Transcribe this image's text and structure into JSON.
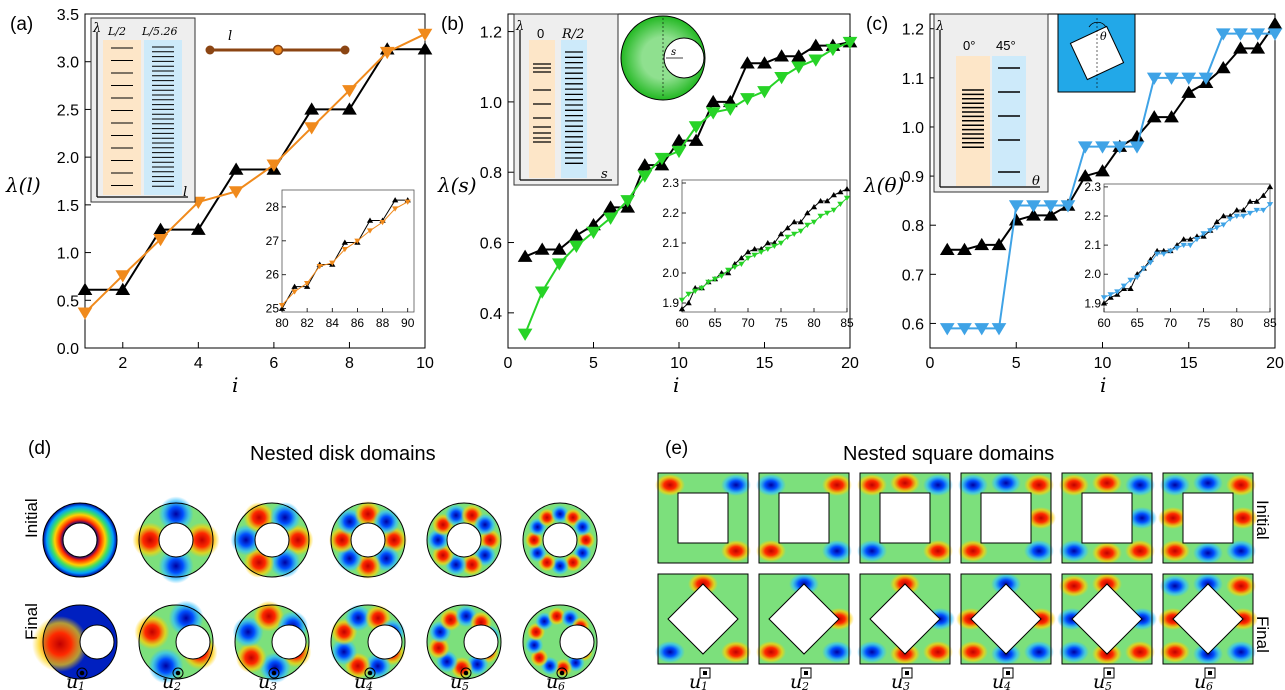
{
  "colors": {
    "black": "#000000",
    "orange": "#f08a1c",
    "green": "#27d327",
    "blue": "#3fa3e6",
    "rod": "#8b4513",
    "peach": "#fde6c8",
    "lightblue": "#cdeafa",
    "insetbg": "#eeeeee"
  },
  "panel_a": {
    "label": "(a)",
    "ylabel": "λ(l)",
    "xlabel": "i",
    "rod_label": "l",
    "xticks": [
      "2",
      "4",
      "6",
      "8",
      "10"
    ],
    "yticks": [
      "0.0",
      "0.5",
      "1.0",
      "1.5",
      "2.0",
      "2.5",
      "3.0",
      "3.5"
    ],
    "ladder": {
      "axis_y": "λ",
      "axis_x": "l",
      "col1": "L/2",
      "col2": "L/5.26"
    },
    "inset": {
      "xticks": [
        "80",
        "82",
        "84",
        "86",
        "88",
        "90"
      ],
      "yticks": [
        "25",
        "26",
        "27",
        "28"
      ]
    }
  },
  "panel_b": {
    "label": "(b)",
    "ylabel": "λ(s)",
    "xlabel": "i",
    "disk_label": "s",
    "xticks": [
      "0",
      "5",
      "10",
      "15",
      "20"
    ],
    "yticks": [
      "0.4",
      "0.6",
      "0.8",
      "1.0",
      "1.2"
    ],
    "ladder": {
      "axis_y": "λ",
      "axis_x": "s",
      "col1": "0",
      "col2": "R/2"
    },
    "inset": {
      "xticks": [
        "60",
        "65",
        "70",
        "75",
        "80",
        "85"
      ],
      "yticks": [
        "1.9",
        "2.0",
        "2.1",
        "2.2",
        "2.3"
      ]
    }
  },
  "panel_c": {
    "label": "(c)",
    "ylabel": "λ(θ)",
    "xlabel": "i",
    "square_label": "θ",
    "xticks": [
      "0",
      "5",
      "10",
      "15",
      "20"
    ],
    "yticks": [
      "0.6",
      "0.7",
      "0.8",
      "0.9",
      "1.0",
      "1.1",
      "1.2"
    ],
    "ladder": {
      "axis_y": "λ",
      "axis_x": "θ",
      "col1": "0°",
      "col2": "45°"
    },
    "inset": {
      "xticks": [
        "60",
        "65",
        "70",
        "75",
        "80",
        "85"
      ],
      "yticks": [
        "1.9",
        "2.0",
        "2.1",
        "2.2",
        "2.3"
      ]
    }
  },
  "panel_d": {
    "label": "(d)",
    "title": "Nested disk domains",
    "row_initial": "Initial",
    "row_final": "Final",
    "mode_labels": [
      "u",
      "u",
      "u",
      "u",
      "u",
      "u"
    ],
    "mode_subs": [
      "1",
      "2",
      "3",
      "4",
      "5",
      "6"
    ]
  },
  "panel_e": {
    "label": "(e)",
    "title": "Nested square domains",
    "row_initial": "Initial",
    "row_final": "Final",
    "mode_labels": [
      "u",
      "u",
      "u",
      "u",
      "u",
      "u"
    ],
    "mode_subs": [
      "1",
      "2",
      "3",
      "4",
      "5",
      "6"
    ]
  },
  "chart_data": [
    {
      "type": "line",
      "panel": "a",
      "xlabel": "i",
      "ylabel": "λ(l)",
      "xlim": [
        1,
        10
      ],
      "ylim": [
        0,
        3.5
      ],
      "series": [
        {
          "marker": "up-triangle",
          "color": "black",
          "x": [
            1,
            2,
            3,
            4,
            5,
            6,
            7,
            8,
            9,
            10
          ],
          "values": [
            0.61,
            0.61,
            1.24,
            1.24,
            1.87,
            1.87,
            2.5,
            2.5,
            3.13,
            3.13
          ]
        },
        {
          "marker": "down-triangle",
          "color": "orange",
          "x": [
            1,
            2,
            3,
            4,
            5,
            6,
            7,
            8,
            9,
            10
          ],
          "values": [
            0.37,
            0.76,
            1.14,
            1.53,
            1.64,
            1.92,
            2.31,
            2.7,
            3.1,
            3.29
          ]
        }
      ],
      "inset": {
        "xlim": [
          80,
          90.5
        ],
        "ylim": [
          24.9,
          28.5
        ],
        "series": [
          {
            "color": "black",
            "x": [
              80,
              81,
              82,
              83,
              84,
              85,
              86,
              87,
              88,
              89,
              90
            ],
            "values": [
              25.0,
              25.65,
              25.65,
              26.3,
              26.3,
              26.95,
              26.95,
              27.6,
              27.6,
              28.2,
              28.2
            ]
          },
          {
            "color": "orange",
            "x": [
              80,
              81,
              82,
              83,
              84,
              85,
              86,
              87,
              88,
              89,
              90
            ],
            "values": [
              25.1,
              25.5,
              25.75,
              26.25,
              26.35,
              26.75,
              27.0,
              27.3,
              27.55,
              27.95,
              28.15
            ]
          }
        ]
      }
    },
    {
      "type": "line",
      "panel": "b",
      "xlabel": "i",
      "ylabel": "λ(s)",
      "xlim": [
        0,
        20
      ],
      "ylim": [
        0.3,
        1.25
      ],
      "series": [
        {
          "marker": "up-triangle",
          "color": "black",
          "x": [
            1,
            2,
            3,
            4,
            5,
            6,
            7,
            8,
            9,
            10,
            11,
            12,
            13,
            14,
            15,
            16,
            17,
            18,
            19,
            20
          ],
          "values": [
            0.56,
            0.58,
            0.58,
            0.62,
            0.65,
            0.7,
            0.7,
            0.82,
            0.82,
            0.89,
            0.89,
            1.0,
            1.0,
            1.11,
            1.11,
            1.13,
            1.13,
            1.16,
            1.16,
            1.17
          ]
        },
        {
          "marker": "down-triangle",
          "color": "green",
          "x": [
            1,
            2,
            3,
            4,
            5,
            6,
            7,
            8,
            9,
            10,
            11,
            12,
            13,
            14,
            15,
            16,
            17,
            18,
            19,
            20
          ],
          "values": [
            0.34,
            0.46,
            0.54,
            0.59,
            0.63,
            0.67,
            0.72,
            0.79,
            0.84,
            0.86,
            0.93,
            0.97,
            0.98,
            1.01,
            1.03,
            1.07,
            1.1,
            1.12,
            1.15,
            1.17
          ]
        }
      ],
      "inset": {
        "xlim": [
          60,
          85
        ],
        "ylim": [
          1.87,
          2.31
        ],
        "series": [
          {
            "color": "black",
            "x": [
              60,
              61,
              62,
              63,
              64,
              65,
              66,
              67,
              68,
              69,
              70,
              71,
              72,
              73,
              74,
              75,
              76,
              77,
              78,
              79,
              80,
              81,
              82,
              83,
              84,
              85
            ],
            "values": [
              1.88,
              1.9,
              1.95,
              1.95,
              1.97,
              1.98,
              2.0,
              2.0,
              2.03,
              2.05,
              2.07,
              2.08,
              2.08,
              2.1,
              2.1,
              2.13,
              2.15,
              2.17,
              2.17,
              2.2,
              2.22,
              2.24,
              2.24,
              2.26,
              2.27,
              2.28
            ]
          },
          {
            "color": "green",
            "x": [
              60,
              61,
              62,
              63,
              64,
              65,
              66,
              67,
              68,
              69,
              70,
              71,
              72,
              73,
              74,
              75,
              76,
              77,
              78,
              79,
              80,
              81,
              82,
              83,
              84,
              85
            ],
            "values": [
              1.91,
              1.93,
              1.94,
              1.95,
              1.97,
              1.98,
              1.99,
              2.01,
              2.02,
              2.03,
              2.05,
              2.06,
              2.07,
              2.08,
              2.09,
              2.1,
              2.12,
              2.13,
              2.14,
              2.16,
              2.17,
              2.19,
              2.2,
              2.21,
              2.23,
              2.25
            ]
          }
        ]
      }
    },
    {
      "type": "line",
      "panel": "c",
      "xlabel": "i",
      "ylabel": "λ(θ)",
      "xlim": [
        0,
        20
      ],
      "ylim": [
        0.55,
        1.23
      ],
      "series": [
        {
          "marker": "up-triangle",
          "color": "black",
          "x": [
            1,
            2,
            3,
            4,
            5,
            6,
            7,
            8,
            9,
            10,
            11,
            12,
            13,
            14,
            15,
            16,
            17,
            18,
            19,
            20
          ],
          "values": [
            0.75,
            0.75,
            0.76,
            0.76,
            0.81,
            0.82,
            0.82,
            0.84,
            0.9,
            0.91,
            0.96,
            0.98,
            1.02,
            1.02,
            1.07,
            1.09,
            1.12,
            1.16,
            1.16,
            1.21
          ]
        },
        {
          "marker": "down-triangle",
          "color": "blue",
          "x": [
            1,
            2,
            3,
            4,
            5,
            6,
            7,
            8,
            9,
            10,
            11,
            12,
            13,
            14,
            15,
            16,
            17,
            18,
            19,
            20
          ],
          "values": [
            0.59,
            0.59,
            0.59,
            0.59,
            0.84,
            0.84,
            0.84,
            0.84,
            0.96,
            0.96,
            0.96,
            0.96,
            1.1,
            1.1,
            1.1,
            1.1,
            1.19,
            1.19,
            1.19,
            1.19
          ]
        }
      ],
      "inset": {
        "xlim": [
          60,
          85
        ],
        "ylim": [
          1.87,
          2.31
        ],
        "series": [
          {
            "color": "black",
            "x": [
              60,
              61,
              62,
              63,
              64,
              65,
              66,
              67,
              68,
              69,
              70,
              71,
              72,
              73,
              74,
              75,
              76,
              77,
              78,
              79,
              80,
              81,
              82,
              83,
              84,
              85
            ],
            "values": [
              1.9,
              1.92,
              1.93,
              1.95,
              1.95,
              2.0,
              2.02,
              2.05,
              2.08,
              2.08,
              2.08,
              2.1,
              2.12,
              2.12,
              2.13,
              2.13,
              2.15,
              2.18,
              2.2,
              2.2,
              2.22,
              2.22,
              2.25,
              2.25,
              2.27,
              2.3
            ]
          },
          {
            "color": "blue",
            "x": [
              60,
              61,
              62,
              63,
              64,
              65,
              66,
              67,
              68,
              69,
              70,
              71,
              72,
              73,
              74,
              75,
              76,
              77,
              78,
              79,
              80,
              81,
              82,
              83,
              84,
              85
            ],
            "values": [
              1.92,
              1.93,
              1.94,
              1.96,
              1.98,
              1.99,
              2.02,
              2.04,
              2.07,
              2.07,
              2.08,
              2.09,
              2.1,
              2.1,
              2.12,
              2.14,
              2.15,
              2.16,
              2.17,
              2.19,
              2.2,
              2.2,
              2.21,
              2.22,
              2.22,
              2.24
            ]
          }
        ]
      }
    }
  ]
}
